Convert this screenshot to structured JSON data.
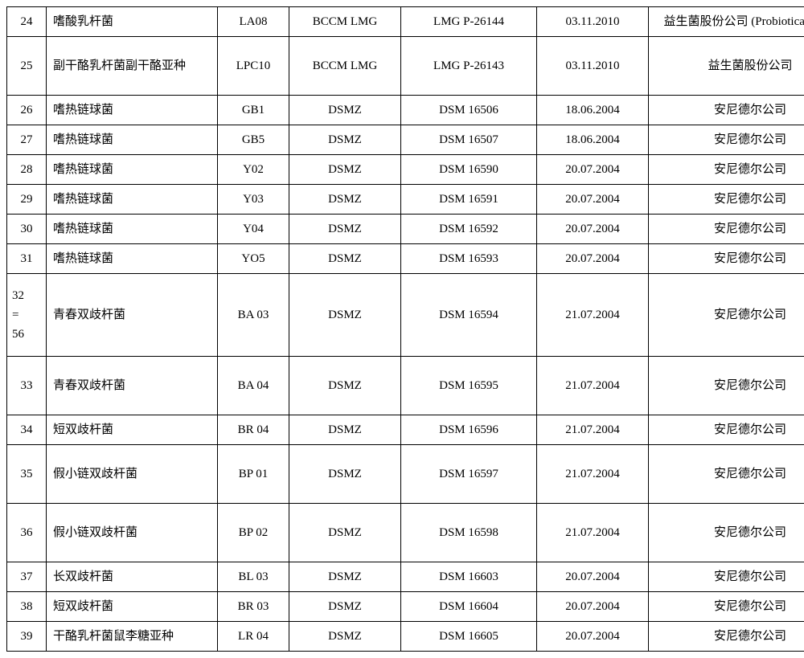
{
  "rows": [
    {
      "num": "24",
      "name": "嗜酸乳杆菌",
      "code": "LA08",
      "dep": "BCCM LMG",
      "id": "LMG P-26144",
      "date": "03.11.2010",
      "company": "益生菌股份公司 (Probiotical SpA)",
      "cls": ""
    },
    {
      "num": "25",
      "name": "副干酪乳杆菌副干酪亚种",
      "code": "LPC10",
      "dep": "BCCM LMG",
      "id": "LMG P-26143",
      "date": "03.11.2010",
      "company": "益生菌股份公司",
      "cls": "tall"
    },
    {
      "num": "26",
      "name": "嗜热链球菌",
      "code": "GB1",
      "dep": "DSMZ",
      "id": "DSM 16506",
      "date": "18.06.2004",
      "company": "安尼德尔公司",
      "cls": ""
    },
    {
      "num": "27",
      "name": "嗜热链球菌",
      "code": "GB5",
      "dep": "DSMZ",
      "id": "DSM 16507",
      "date": "18.06.2004",
      "company": "安尼德尔公司",
      "cls": ""
    },
    {
      "num": "28",
      "name": "嗜热链球菌",
      "code": "Y02",
      "dep": "DSMZ",
      "id": "DSM 16590",
      "date": "20.07.2004",
      "company": "安尼德尔公司",
      "cls": ""
    },
    {
      "num": "29",
      "name": "嗜热链球菌",
      "code": "Y03",
      "dep": "DSMZ",
      "id": "DSM 16591",
      "date": "20.07.2004",
      "company": "安尼德尔公司",
      "cls": ""
    },
    {
      "num": "30",
      "name": "嗜热链球菌",
      "code": "Y04",
      "dep": "DSMZ",
      "id": "DSM 16592",
      "date": "20.07.2004",
      "company": "安尼德尔公司",
      "cls": ""
    },
    {
      "num": "31",
      "name": "嗜热链球菌",
      "code": "YO5",
      "dep": "DSMZ",
      "id": "DSM 16593",
      "date": "20.07.2004",
      "company": "安尼德尔公司",
      "cls": ""
    },
    {
      "num": "32\n=\n56",
      "name": "青春双歧杆菌",
      "code": "BA 03",
      "dep": "DSMZ",
      "id": "DSM 16594",
      "date": "21.07.2004",
      "company": "安尼德尔公司",
      "cls": "vtall"
    },
    {
      "num": "33",
      "name": "青春双歧杆菌",
      "code": "BA 04",
      "dep": "DSMZ",
      "id": "DSM 16595",
      "date": "21.07.2004",
      "company": "安尼德尔公司",
      "cls": "tall"
    },
    {
      "num": "34",
      "name": "短双歧杆菌",
      "code": "BR 04",
      "dep": "DSMZ",
      "id": "DSM 16596",
      "date": "21.07.2004",
      "company": "安尼德尔公司",
      "cls": ""
    },
    {
      "num": "35",
      "name": "假小链双歧杆菌",
      "code": "BP 01",
      "dep": "DSMZ",
      "id": "DSM 16597",
      "date": "21.07.2004",
      "company": "安尼德尔公司",
      "cls": "tall"
    },
    {
      "num": "36",
      "name": "假小链双歧杆菌",
      "code": "BP 02",
      "dep": "DSMZ",
      "id": "DSM 16598",
      "date": "21.07.2004",
      "company": "安尼德尔公司",
      "cls": "tall"
    },
    {
      "num": "37",
      "name": "长双歧杆菌",
      "code": "BL 03",
      "dep": "DSMZ",
      "id": "DSM 16603",
      "date": "20.07.2004",
      "company": "安尼德尔公司",
      "cls": ""
    },
    {
      "num": "38",
      "name": "短双歧杆菌",
      "code": "BR 03",
      "dep": "DSMZ",
      "id": "DSM 16604",
      "date": "20.07.2004",
      "company": "安尼德尔公司",
      "cls": ""
    },
    {
      "num": "39",
      "name": "干酪乳杆菌鼠李糖亚种",
      "code": "LR 04",
      "dep": "DSMZ",
      "id": "DSM 16605",
      "date": "20.07.2004",
      "company": "安尼德尔公司",
      "cls": ""
    }
  ],
  "columns": [
    "num",
    "name",
    "code",
    "dep",
    "id",
    "date",
    "company"
  ],
  "col_classes": [
    "col-num",
    "col-name",
    "col-code",
    "col-dep",
    "col-id",
    "col-date",
    "col-company"
  ]
}
